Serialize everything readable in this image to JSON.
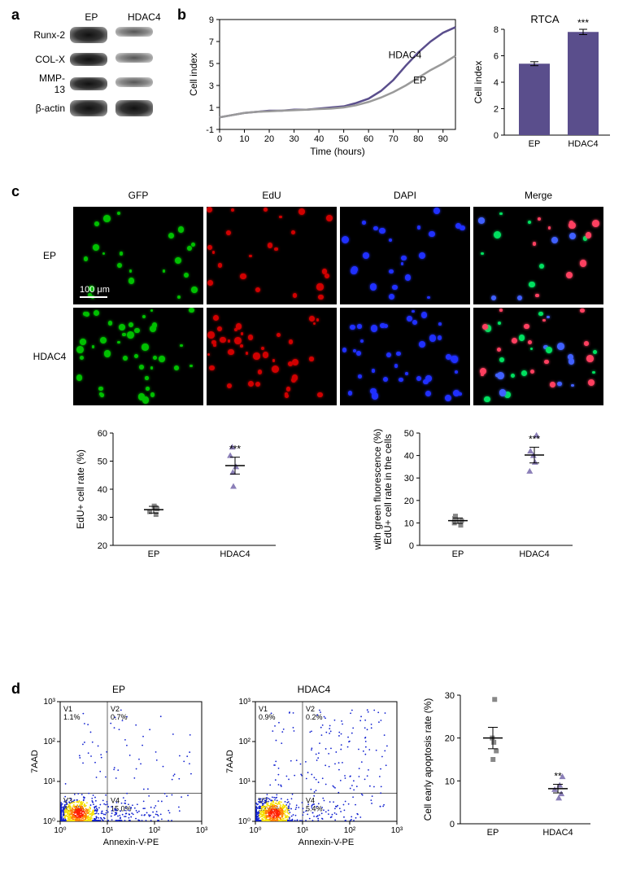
{
  "colors": {
    "hdac4": "#5a4e8c",
    "ep": "#9a9a9a",
    "hdac4_marker": "#8b7fb8",
    "ep_marker": "#888888",
    "black": "#000000",
    "white": "#ffffff",
    "red": "#ff0000",
    "green": "#00ff00",
    "blue": "#0000ff",
    "flow_blue": "#1020d0",
    "flow_yellow": "#f5e000",
    "flow_red": "#ff2000",
    "flow_orange": "#ff8000"
  },
  "panel_a": {
    "label": "a",
    "header_ep": "EP",
    "header_hdac4": "HDAC4",
    "rows": [
      {
        "label": "Runx-2",
        "ep_intensity": "strong",
        "hdac4_intensity": "faint"
      },
      {
        "label": "COL-X",
        "ep_intensity": "normal",
        "hdac4_intensity": "faint"
      },
      {
        "label": "MMP-13",
        "ep_intensity": "normal",
        "hdac4_intensity": "faint"
      },
      {
        "label": "β-actin",
        "ep_intensity": "strong",
        "hdac4_intensity": "strong"
      }
    ]
  },
  "panel_b": {
    "label": "b",
    "line_chart": {
      "xlabel": "Time (hours)",
      "ylabel": "Cell index",
      "xlim": [
        0,
        95
      ],
      "ylim": [
        -1,
        9
      ],
      "xticks": [
        0,
        10,
        20,
        30,
        40,
        50,
        60,
        70,
        80,
        90
      ],
      "yticks": [
        -1,
        1,
        3,
        5,
        7,
        9
      ],
      "series": [
        {
          "name": "HDAC4",
          "color": "#5a4e8c",
          "label_x": 68,
          "label_y": 5.5,
          "points": [
            [
              0,
              0.1
            ],
            [
              5,
              0.3
            ],
            [
              10,
              0.5
            ],
            [
              15,
              0.6
            ],
            [
              20,
              0.7
            ],
            [
              25,
              0.7
            ],
            [
              30,
              0.8
            ],
            [
              35,
              0.8
            ],
            [
              40,
              0.9
            ],
            [
              45,
              1.0
            ],
            [
              50,
              1.1
            ],
            [
              55,
              1.4
            ],
            [
              60,
              1.8
            ],
            [
              65,
              2.5
            ],
            [
              70,
              3.5
            ],
            [
              75,
              4.8
            ],
            [
              80,
              6.0
            ],
            [
              85,
              7.0
            ],
            [
              90,
              7.8
            ],
            [
              95,
              8.3
            ]
          ]
        },
        {
          "name": "EP",
          "color": "#9a9a9a",
          "label_x": 78,
          "label_y": 3.2,
          "points": [
            [
              0,
              0.1
            ],
            [
              5,
              0.3
            ],
            [
              10,
              0.5
            ],
            [
              15,
              0.6
            ],
            [
              20,
              0.65
            ],
            [
              25,
              0.7
            ],
            [
              30,
              0.75
            ],
            [
              35,
              0.8
            ],
            [
              40,
              0.85
            ],
            [
              45,
              0.9
            ],
            [
              50,
              1.0
            ],
            [
              55,
              1.2
            ],
            [
              60,
              1.5
            ],
            [
              65,
              1.9
            ],
            [
              70,
              2.4
            ],
            [
              75,
              3.0
            ],
            [
              80,
              3.7
            ],
            [
              85,
              4.4
            ],
            [
              90,
              5.0
            ],
            [
              95,
              5.7
            ]
          ]
        }
      ]
    },
    "bar_chart": {
      "title": "RTCA",
      "ylabel": "Cell index",
      "ylim": [
        0,
        8
      ],
      "yticks": [
        0,
        2,
        4,
        6,
        8
      ],
      "bars": [
        {
          "label": "EP",
          "value": 5.4,
          "err": 0.15,
          "color": "#5a4e8c"
        },
        {
          "label": "HDAC4",
          "value": 7.8,
          "err": 0.2,
          "color": "#5a4e8c",
          "sig": "***"
        }
      ]
    }
  },
  "panel_c": {
    "label": "c",
    "columns": [
      "GFP",
      "EdU",
      "DAPI",
      "Merge"
    ],
    "rows": [
      "EP",
      "HDAC4"
    ],
    "scale_bar": "100 μm",
    "scatter_left": {
      "ylabel": "EdU+ cell rate (%)",
      "ylim": [
        20,
        60
      ],
      "yticks": [
        20,
        30,
        40,
        50,
        60
      ],
      "groups": [
        {
          "label": "EP",
          "values": [
            31,
            32,
            33,
            33.5,
            34
          ],
          "mean": 32.7,
          "err": 1.2,
          "marker_color": "#888888",
          "sig": ""
        },
        {
          "label": "HDAC4",
          "values": [
            41,
            46,
            48,
            52,
            55
          ],
          "mean": 48.4,
          "err": 3.0,
          "marker_color": "#8b7fb8",
          "sig": "***"
        }
      ]
    },
    "scatter_right": {
      "ylabel": "EdU+ cell rate in the cells\nwith green fluorescence (%)",
      "ylim": [
        0,
        50
      ],
      "yticks": [
        0,
        10,
        20,
        30,
        40,
        50
      ],
      "groups": [
        {
          "label": "EP",
          "values": [
            9,
            10,
            11,
            12,
            13
          ],
          "mean": 11.0,
          "err": 1.2,
          "marker_color": "#888888",
          "sig": ""
        },
        {
          "label": "HDAC4",
          "values": [
            33,
            37,
            40,
            42,
            49
          ],
          "mean": 40.2,
          "err": 3.5,
          "marker_color": "#8b7fb8",
          "sig": "***"
        }
      ]
    }
  },
  "panel_d": {
    "label": "d",
    "flow": {
      "xlabel": "Annexin-V-PE",
      "ylabel": "7AAD",
      "log_ticks": [
        "10⁰",
        "10¹",
        "10²",
        "10³"
      ],
      "plots": [
        {
          "title": "EP",
          "quads": {
            "V1": "1.1%",
            "V2": "0.7%",
            "V3": "83.3%",
            "V4": "15.0%"
          }
        },
        {
          "title": "HDAC4",
          "quads": {
            "V1": "0.9%",
            "V2": "0.2%",
            "V3": "93.6%",
            "V4": "5.4%"
          }
        }
      ]
    },
    "scatter": {
      "ylabel": "Cell early apoptosis rate (%)",
      "ylim": [
        0,
        30
      ],
      "yticks": [
        0,
        10,
        20,
        30
      ],
      "groups": [
        {
          "label": "EP",
          "values": [
            15,
            17,
            19,
            20,
            29
          ],
          "mean": 20.0,
          "err": 2.5,
          "marker_color": "#888888",
          "sig": ""
        },
        {
          "label": "HDAC4",
          "values": [
            6,
            7,
            8,
            9,
            11
          ],
          "mean": 8.2,
          "err": 1.0,
          "marker_color": "#8b7fb8",
          "sig": "**"
        }
      ]
    }
  }
}
